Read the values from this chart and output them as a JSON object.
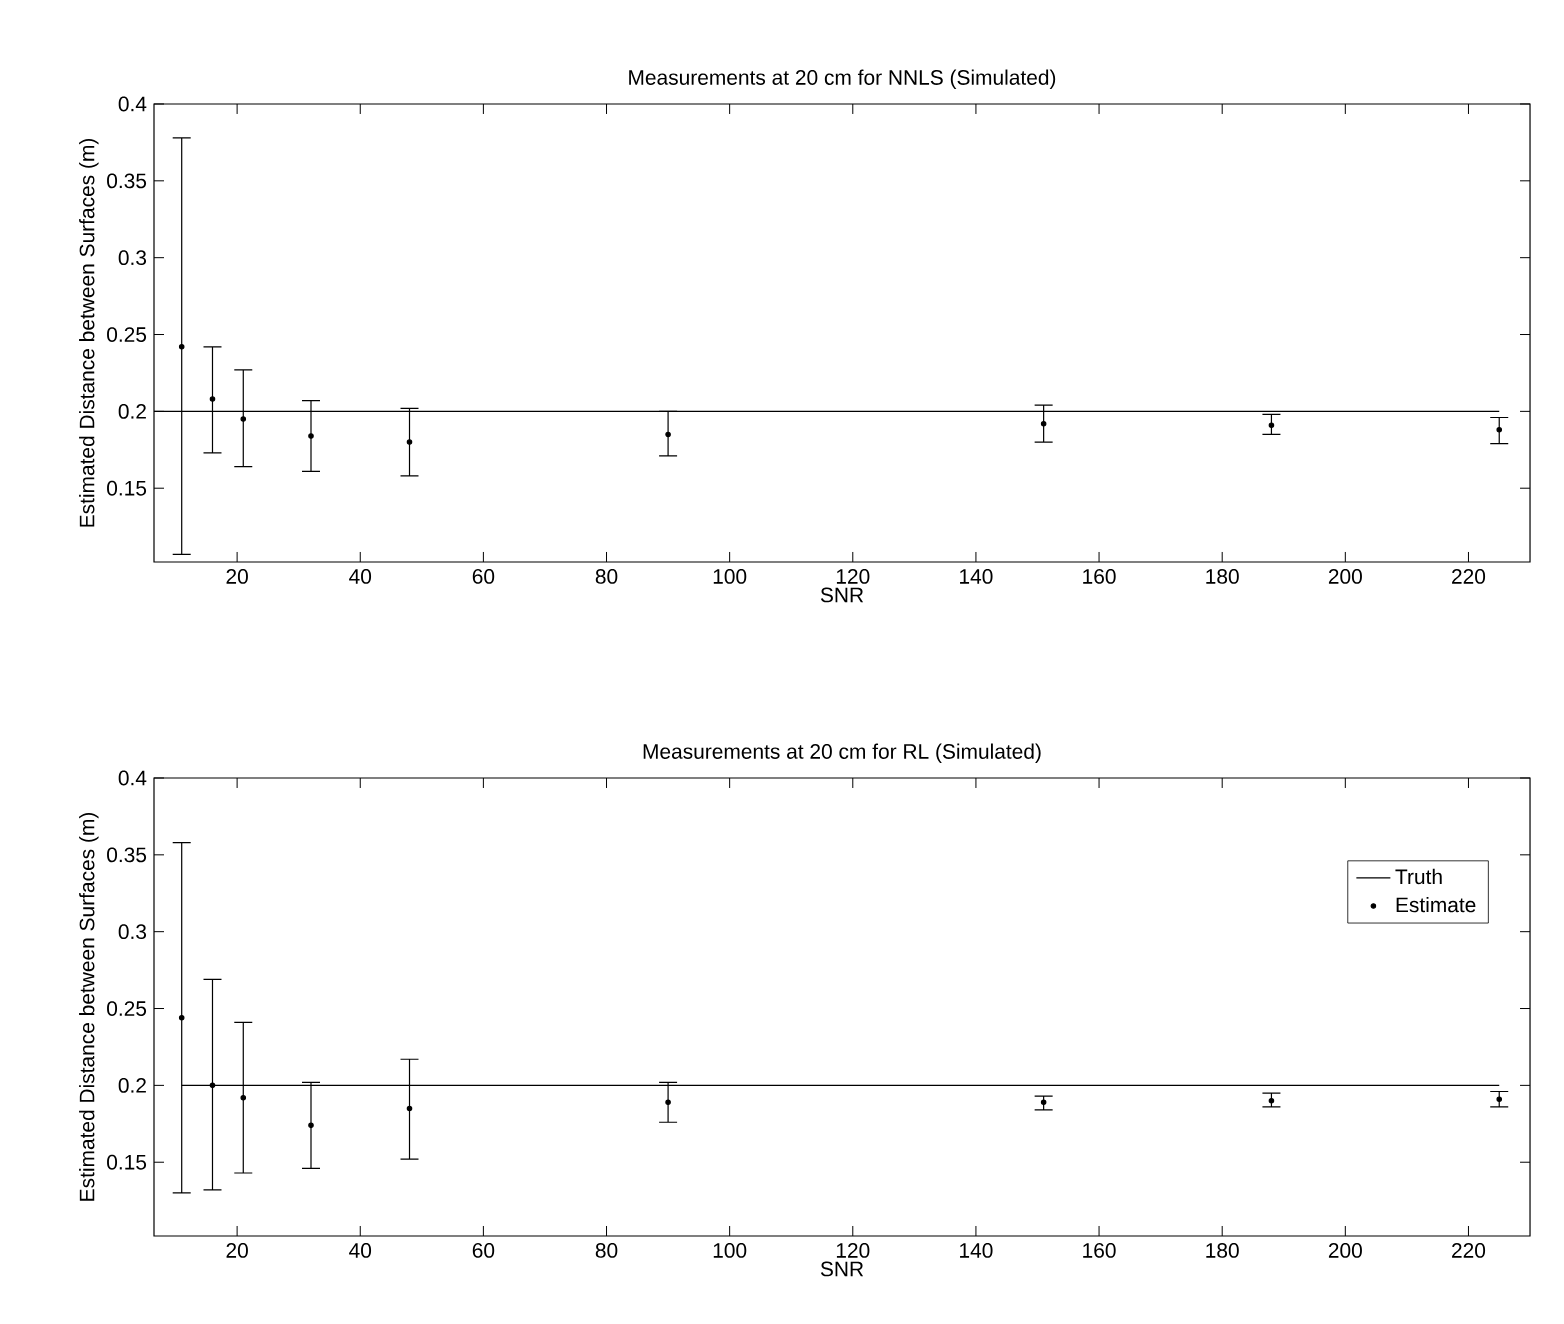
{
  "chart_data": [
    {
      "type": "scatter",
      "title": "Measurements at 20 cm for NNLS (Simulated)",
      "xlabel": "SNR",
      "ylabel": "Estimated Distance between Surfaces (m)",
      "xlim": [
        6.5,
        230
      ],
      "ylim": [
        0.102,
        0.4
      ],
      "xticks": [
        20,
        40,
        60,
        80,
        100,
        120,
        140,
        160,
        180,
        200,
        220
      ],
      "yticks": [
        0.15,
        0.2,
        0.25,
        0.3,
        0.35,
        0.4
      ],
      "legend": false,
      "series": [
        {
          "type": "line",
          "color": "#000000",
          "line_style": "solid",
          "marker": "none",
          "x": [
            6.5,
            225
          ],
          "values": [
            0.2,
            0.2
          ]
        },
        {
          "type": "scatter",
          "color": "#000000",
          "marker": "circle",
          "x": [
            11,
            16,
            21,
            32,
            48,
            90,
            151,
            188,
            225
          ],
          "values": [
            0.242,
            0.208,
            0.195,
            0.184,
            0.18,
            0.185,
            0.192,
            0.191,
            0.188
          ],
          "errors": [
            [
              0.107,
              0.378
            ],
            [
              0.173,
              0.242
            ],
            [
              0.164,
              0.227
            ],
            [
              0.161,
              0.207
            ],
            [
              0.158,
              0.202
            ],
            [
              0.171,
              0.2
            ],
            [
              0.18,
              0.204
            ],
            [
              0.185,
              0.198
            ],
            [
              0.179,
              0.196
            ]
          ]
        }
      ]
    },
    {
      "type": "scatter",
      "title": "Measurements at 20 cm for RL (Simulated)",
      "xlabel": "SNR",
      "ylabel": "Estimated Distance between Surfaces (m)",
      "xlim": [
        6.5,
        230
      ],
      "ylim": [
        0.102,
        0.4
      ],
      "xticks": [
        20,
        40,
        60,
        80,
        100,
        120,
        140,
        160,
        180,
        200,
        220
      ],
      "yticks": [
        0.15,
        0.2,
        0.25,
        0.3,
        0.35,
        0.4
      ],
      "legend": "top right",
      "series": [
        {
          "type": "line",
          "name": "Truth",
          "color": "#000000",
          "line_style": "solid",
          "marker": "none",
          "x": [
            11,
            225
          ],
          "values": [
            0.2,
            0.2
          ]
        },
        {
          "type": "scatter",
          "name": "Estimate",
          "color": "#000000",
          "marker": "circle",
          "x": [
            11,
            16,
            21,
            32,
            48,
            90,
            151,
            188,
            225
          ],
          "values": [
            0.244,
            0.2,
            0.192,
            0.174,
            0.185,
            0.189,
            0.189,
            0.19,
            0.191
          ],
          "errors": [
            [
              0.13,
              0.358
            ],
            [
              0.132,
              0.269
            ],
            [
              0.143,
              0.241
            ],
            [
              0.146,
              0.202
            ],
            [
              0.152,
              0.217
            ],
            [
              0.176,
              0.202
            ],
            [
              0.184,
              0.193
            ],
            [
              0.186,
              0.195
            ],
            [
              0.186,
              0.196
            ]
          ]
        }
      ]
    }
  ]
}
